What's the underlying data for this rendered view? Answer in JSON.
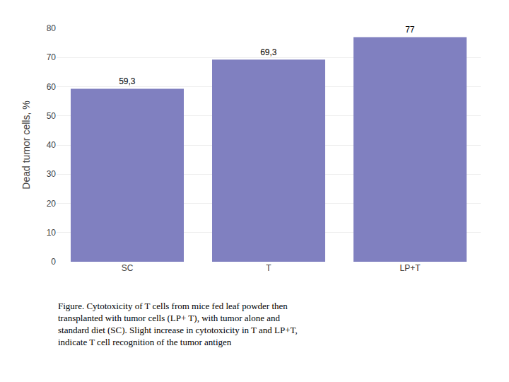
{
  "chart_data": {
    "type": "bar",
    "ylabel": "Dead tumor cells, %",
    "categories": [
      "SC",
      "T",
      "LP+T"
    ],
    "values": [
      59.3,
      69.3,
      77
    ],
    "value_labels": [
      "59,3",
      "69,3",
      "77"
    ],
    "data_labels": true,
    "color": "#8080c0",
    "ylim": [
      0,
      80
    ],
    "yticks": [
      0,
      10,
      20,
      30,
      40,
      50,
      60,
      70,
      80
    ],
    "grid": true,
    "annotations": [
      "Figure. Cytotoxicity of T cells from mice fed leaf powder then",
      "transplanted with tumor cells (LP+ T), with tumor alone and",
      "standard diet (SC). Slight increase in cytotoxicity in T and LP+T,",
      "indicate T cell recognition of the tumor antigen"
    ]
  }
}
